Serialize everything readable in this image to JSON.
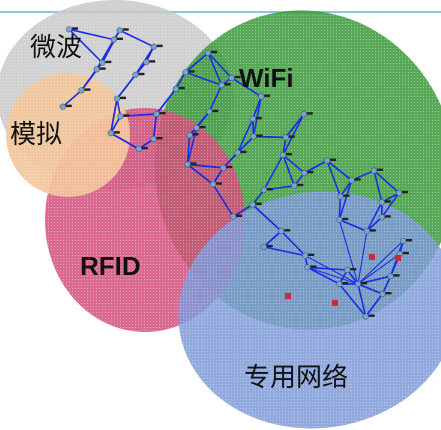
{
  "regions": [
    {
      "key": "microwave",
      "label": "微波",
      "color": "#c9c9c9"
    },
    {
      "key": "wifi",
      "label": "WiFi",
      "color": "#3a9a3a"
    },
    {
      "key": "simulated",
      "label": "模拟",
      "color": "#f3c69a"
    },
    {
      "key": "rfid",
      "label": "RFID",
      "color": "#d3507d"
    },
    {
      "key": "private_network",
      "label": "专用网络",
      "color": "#7f9bd8"
    }
  ],
  "network": {
    "link_color": "#1a2ee8",
    "node_color": "#7aa7c8",
    "router_color": "#222222",
    "alert_color": "#cc2a3a"
  },
  "header_rule_color": "#8ec5e6"
}
